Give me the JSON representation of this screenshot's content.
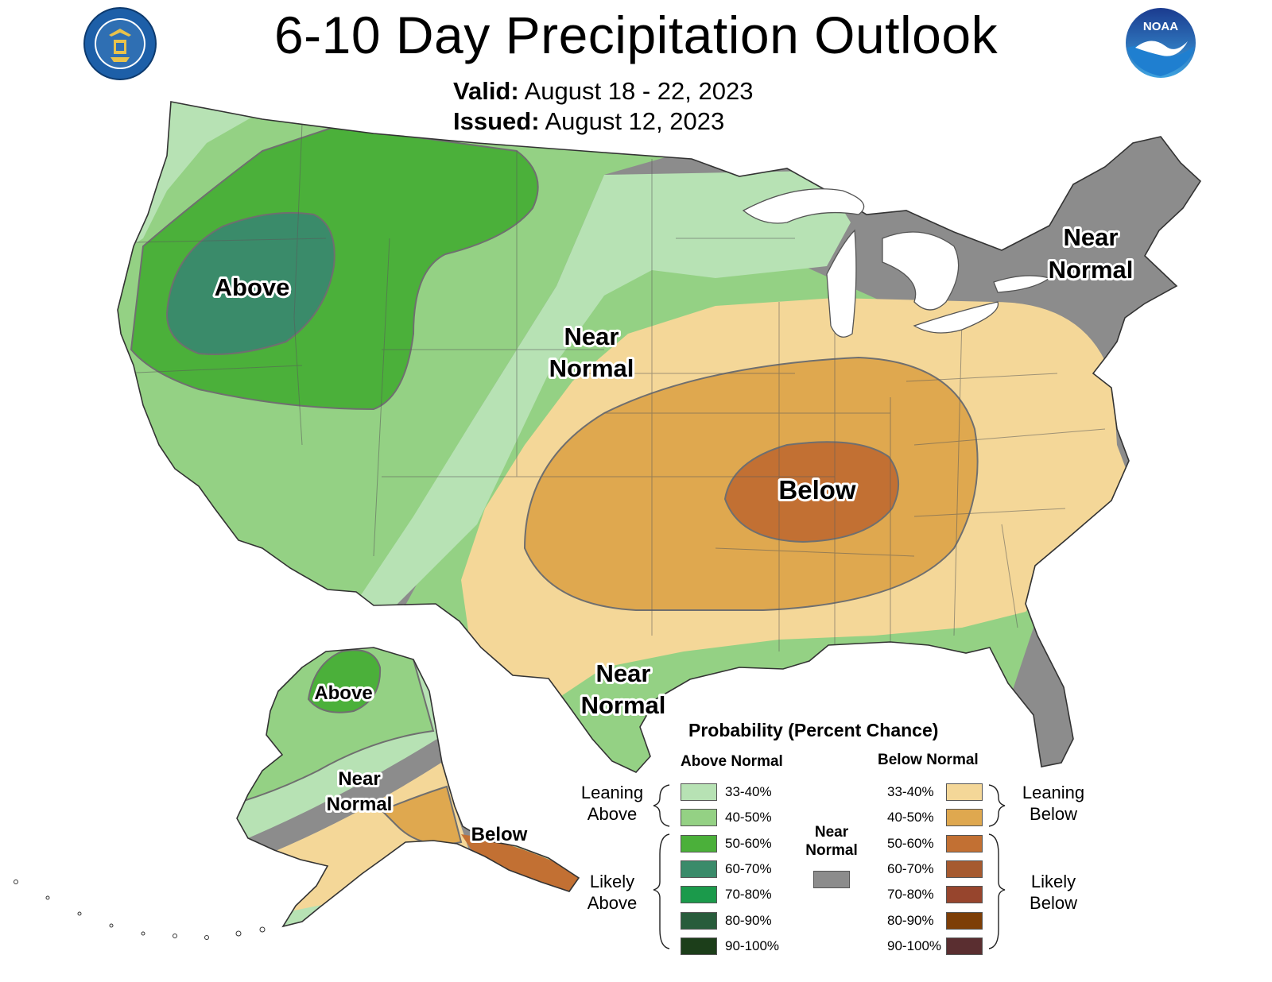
{
  "title": "6-10 Day Precipitation Outlook",
  "valid": {
    "label": "Valid:",
    "value": "August 18 - 22, 2023"
  },
  "issued": {
    "label": "Issued:",
    "value": "August 12, 2023"
  },
  "logos": {
    "left": "doc-seal",
    "right": "noaa-logo",
    "noaa_text": "NOAA"
  },
  "colors": {
    "above_33_40": "#b7e2b4",
    "above_40_50": "#94d184",
    "above_50_60": "#4bb03a",
    "above_60_70": "#3a8b6a",
    "above_70_80": "#1b9a4b",
    "above_80_90": "#285c3b",
    "above_90_100": "#1c3e1a",
    "below_33_40": "#f4d798",
    "below_40_50": "#dfa84f",
    "below_50_60": "#c27033",
    "below_60_70": "#a65a2f",
    "below_70_80": "#97452d",
    "below_80_90": "#7d3e07",
    "below_90_100": "#5a2e30",
    "near_normal": "#8c8c8c"
  },
  "map_labels": {
    "above_west": "Above",
    "near_normal_plains": [
      "Near",
      "Normal"
    ],
    "near_normal_northeast": [
      "Near",
      "Normal"
    ],
    "near_normal_texas": [
      "Near",
      "Normal"
    ],
    "below_central": "Below",
    "alaska_above": "Above",
    "alaska_near_normal": [
      "Near",
      "Normal"
    ],
    "alaska_below": "Below"
  },
  "legend": {
    "title": "Probability (Percent Chance)",
    "above_header": "Above Normal",
    "below_header": "Below Normal",
    "near_label": [
      "Near",
      "Normal"
    ],
    "leaning_above": [
      "Leaning",
      "Above"
    ],
    "likely_above": [
      "Likely",
      "Above"
    ],
    "leaning_below": [
      "Leaning",
      "Below"
    ],
    "likely_below": [
      "Likely",
      "Below"
    ],
    "above_items": [
      "33-40%",
      "40-50%",
      "50-60%",
      "60-70%",
      "70-80%",
      "80-90%",
      "90-100%"
    ],
    "below_items": [
      "33-40%",
      "40-50%",
      "50-60%",
      "60-70%",
      "70-80%",
      "80-90%",
      "90-100%"
    ]
  }
}
